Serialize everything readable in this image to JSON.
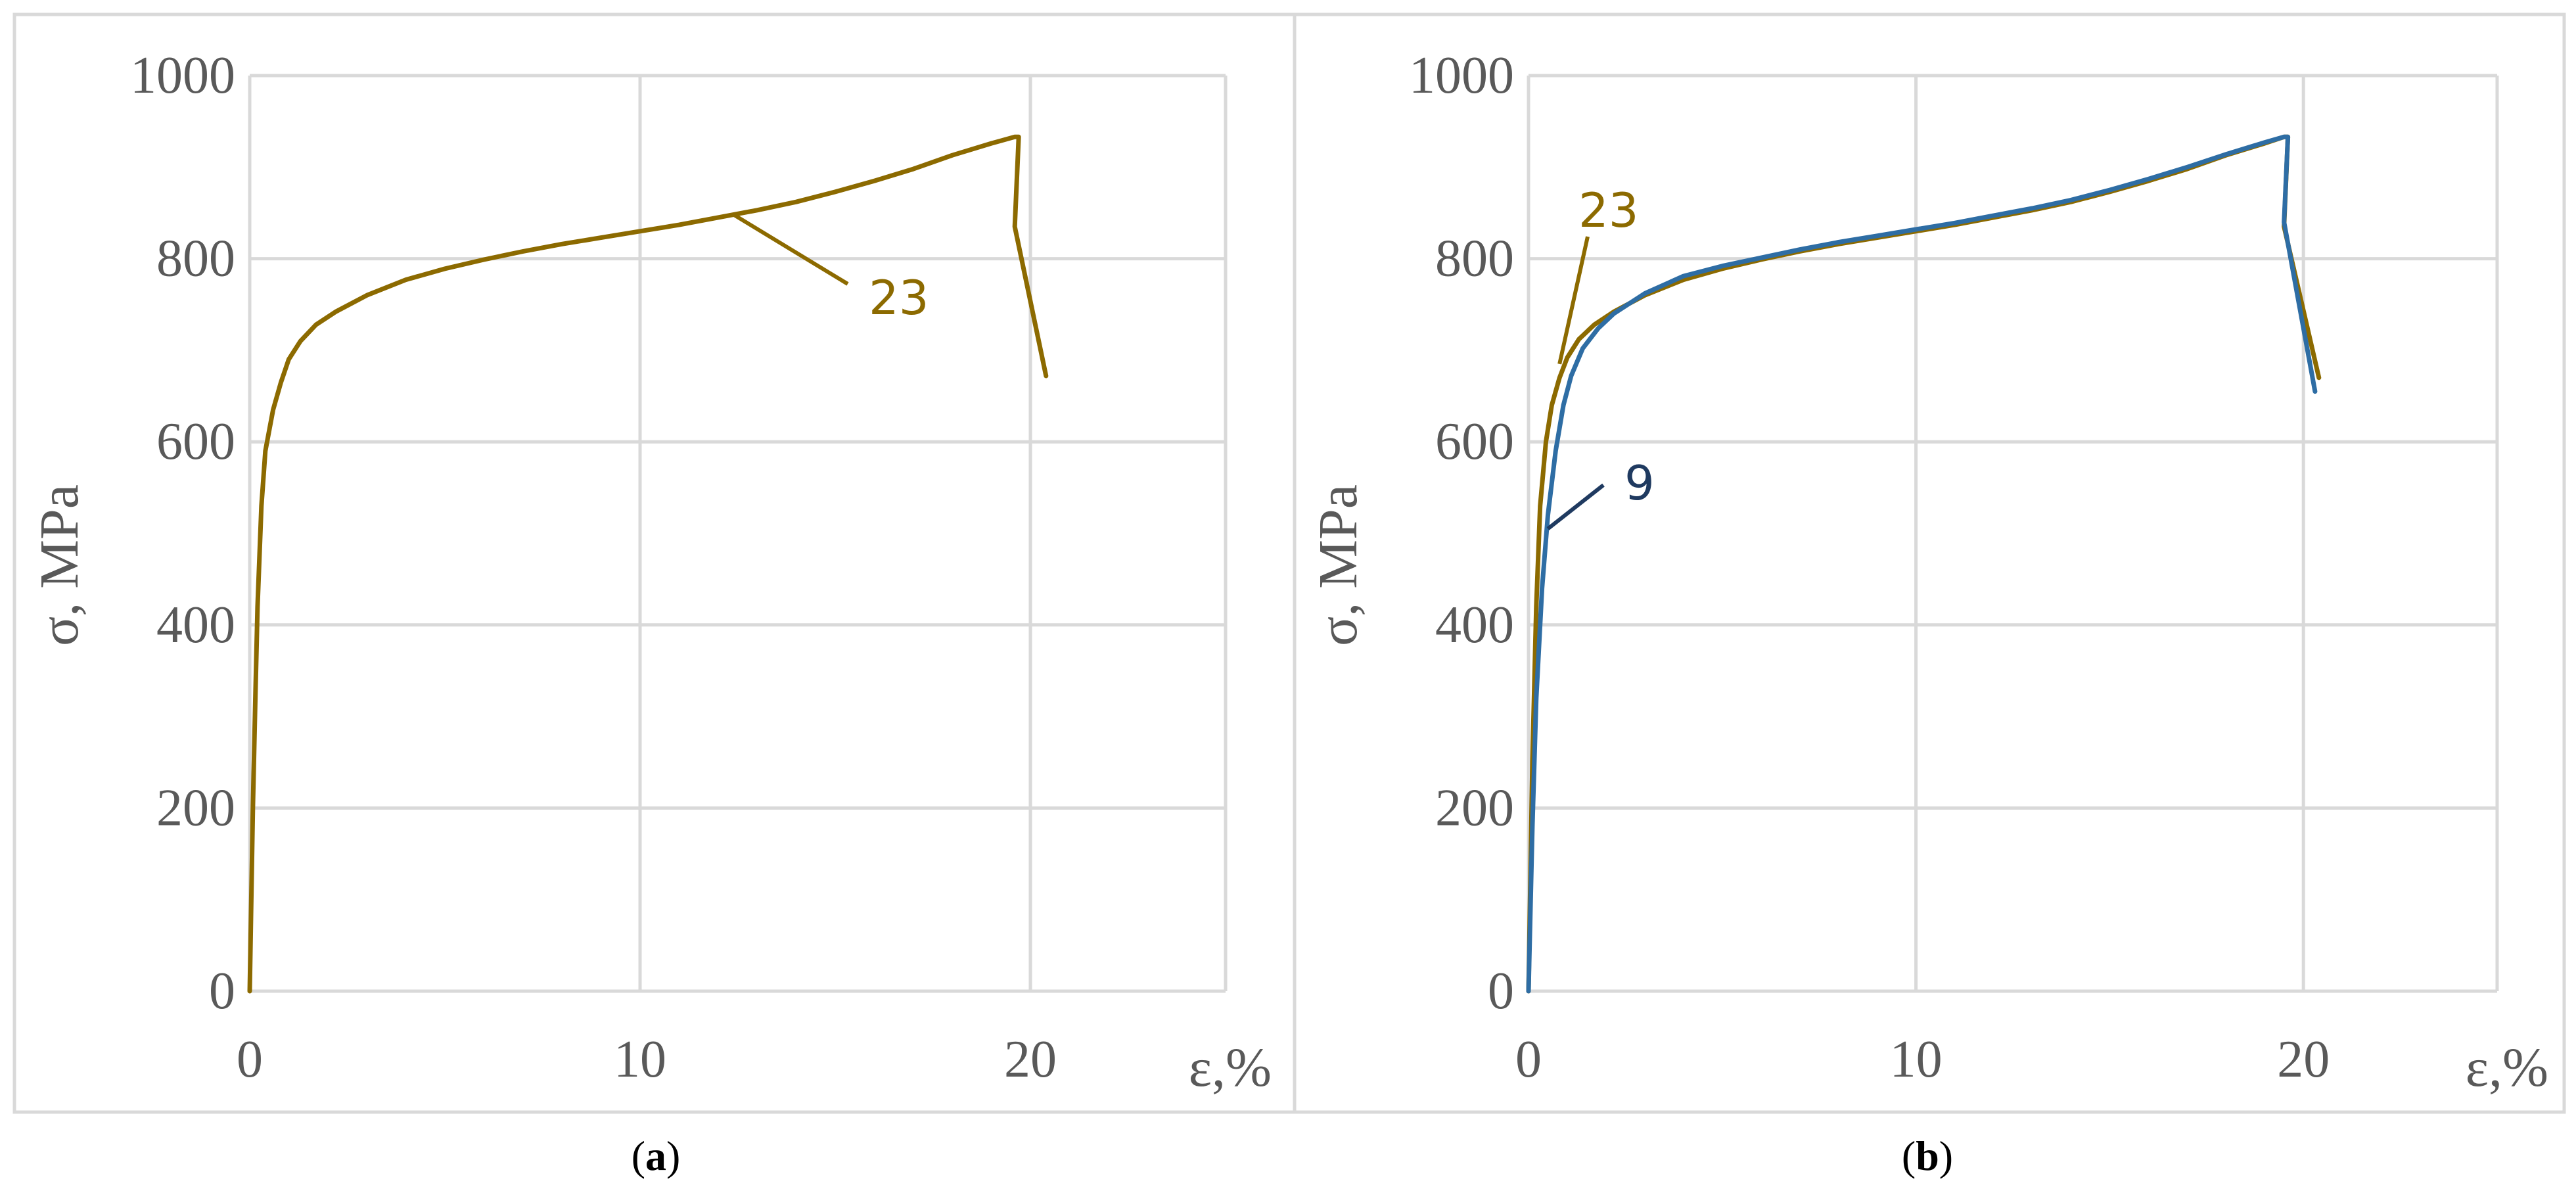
{
  "colors": {
    "series_23": "#8c6a00",
    "series_9_main": "#2e6da4",
    "series_9_label": "#1f3a60",
    "grid": "#d9d9d9",
    "axis_text": "#595959",
    "frame": "#d9d9d9"
  },
  "chart_data": [
    {
      "type": "line",
      "panel_letter": "a",
      "xlabel": "ε,%",
      "ylabel": "σ, MPa",
      "xlim": [
        0,
        25
      ],
      "ylim": [
        0,
        1000
      ],
      "x_ticks": [
        "0",
        "10",
        "20"
      ],
      "y_ticks": [
        "0",
        "200",
        "400",
        "600",
        "800",
        "1000"
      ],
      "grid": true,
      "series": [
        {
          "name": "23",
          "color": "#8c6a00",
          "x": [
            0,
            0.08,
            0.15,
            0.2,
            0.3,
            0.4,
            0.6,
            0.8,
            1.0,
            1.3,
            1.7,
            2.2,
            3,
            4,
            5,
            6,
            7,
            8,
            9,
            10,
            11,
            12,
            13,
            14,
            15,
            16,
            17,
            18,
            19,
            19.6,
            19.7,
            19.6,
            20.4
          ],
          "y": [
            0,
            200,
            330,
            420,
            530,
            590,
            635,
            665,
            690,
            710,
            728,
            742,
            760,
            777,
            789,
            799,
            808,
            816,
            823,
            830,
            837,
            845,
            853,
            862,
            873,
            885,
            898,
            913,
            926,
            933,
            933,
            835,
            672
          ]
        }
      ],
      "annotations": [
        {
          "text": "23",
          "color": "#8c6a00",
          "point_x": 12.4,
          "point_y": 848
        }
      ]
    },
    {
      "type": "line",
      "panel_letter": "b",
      "xlabel": "ε,%",
      "ylabel": "σ, MPa",
      "xlim": [
        0,
        25
      ],
      "ylim": [
        0,
        1000
      ],
      "x_ticks": [
        "0",
        "10",
        "20"
      ],
      "y_ticks": [
        "0",
        "200",
        "400",
        "600",
        "800",
        "1000"
      ],
      "grid": true,
      "series": [
        {
          "name": "23",
          "color": "#8c6a00",
          "x": [
            0,
            0.1,
            0.2,
            0.3,
            0.45,
            0.6,
            0.8,
            1.0,
            1.3,
            1.7,
            2.2,
            3,
            4,
            5,
            6,
            7,
            8,
            9,
            10,
            11,
            12,
            13,
            14,
            15,
            16,
            17,
            18,
            19,
            19.5,
            19.6,
            19.5,
            20.4
          ],
          "y": [
            0,
            250,
            420,
            530,
            600,
            640,
            670,
            692,
            712,
            728,
            742,
            760,
            777,
            789,
            799,
            808,
            816,
            823,
            830,
            837,
            845,
            853,
            862,
            873,
            885,
            898,
            913,
            926,
            933,
            933,
            835,
            670
          ]
        },
        {
          "name": "9",
          "color": "#2e6da4",
          "x": [
            0,
            0.1,
            0.2,
            0.35,
            0.5,
            0.7,
            0.9,
            1.1,
            1.4,
            1.8,
            2.2,
            3,
            4,
            5,
            6,
            7,
            8,
            9,
            10,
            11,
            12,
            13,
            14,
            15,
            16,
            17,
            18,
            19,
            19.5,
            19.6,
            19.5,
            20.3
          ],
          "y": [
            0,
            180,
            320,
            440,
            520,
            590,
            640,
            672,
            702,
            724,
            740,
            762,
            781,
            792,
            801,
            810,
            818,
            825,
            832,
            839,
            847,
            855,
            864,
            875,
            887,
            900,
            914,
            927,
            933,
            933,
            840,
            655
          ]
        }
      ],
      "annotations": [
        {
          "text": "23",
          "color": "#8c6a00",
          "point_x": 0.8,
          "point_y": 685
        },
        {
          "text": "9",
          "color": "#1f3a60",
          "point_x": 0.5,
          "point_y": 505
        }
      ]
    }
  ]
}
